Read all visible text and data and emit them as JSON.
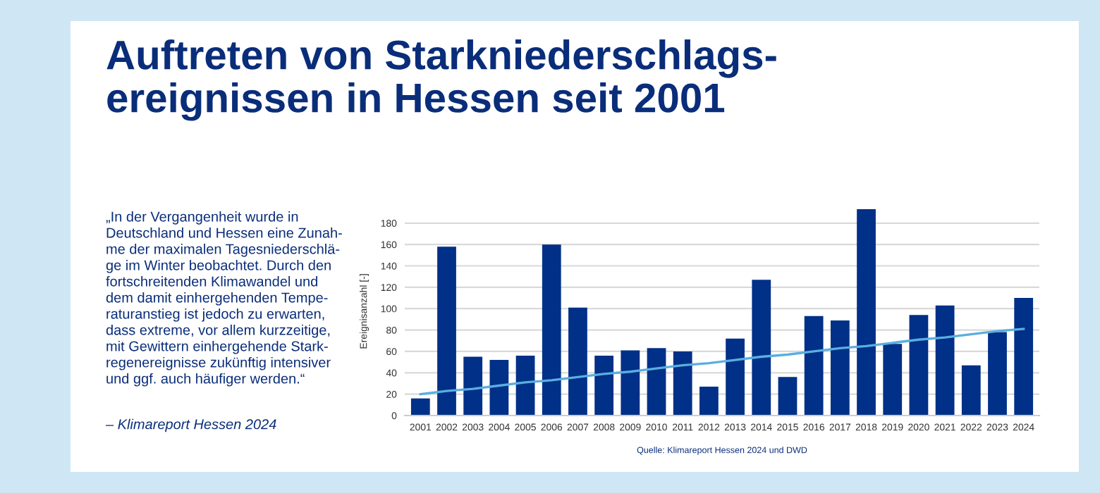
{
  "chart_data": {
    "type": "bar",
    "title": "Auftreten von Starkniederschlags-\nereignissen in Hessen seit 2001",
    "ylabel": "Ereignisanzahl [-]",
    "categories": [
      "2001",
      "2002",
      "2003",
      "2004",
      "2005",
      "2006",
      "2007",
      "2008",
      "2009",
      "2010",
      "2011",
      "2012",
      "2013",
      "2014",
      "2015",
      "2016",
      "2017",
      "2018",
      "2019",
      "2020",
      "2021",
      "2022",
      "2023",
      "2024"
    ],
    "series": [
      {
        "color": "#003087",
        "values": [
          16,
          158,
          55,
          52,
          56,
          160,
          101,
          56,
          61,
          63,
          60,
          27,
          72,
          127,
          36,
          93,
          89,
          193,
          67,
          94,
          103,
          47,
          78,
          110
        ]
      },
      {
        "type": "line",
        "color": "#5aaee0",
        "values": [
          20,
          23,
          25,
          28,
          31,
          33,
          36,
          39,
          41,
          44,
          47,
          49,
          52,
          55,
          57,
          60,
          63,
          65,
          68,
          71,
          73,
          76,
          79,
          81
        ]
      }
    ],
    "ylim": [
      0,
      195
    ],
    "yticks": [
      0,
      20,
      40,
      60,
      80,
      100,
      120,
      140,
      160,
      180
    ],
    "grid": "y",
    "legend": false,
    "annotations": [
      "„In der Vergangenheit wurde in\nDeutschland und Hessen eine Zunah-\nme der maximalen Tagesniederschlä-\nge im Winter beobachtet. Durch den\nfortschreitenden Klimawandel und\ndem damit einhergehenden Tempe-\nraturanstieg ist jedoch zu erwarten,\ndass extreme, vor allem kurzzeitige,\nmit Gewittern einhergehende Stark-\nregenereignisse zukünftig intensiver\nund ggf. auch häufiger werden.“",
      "– Klimareport Hessen 2024",
      "Quelle: Klimareport Hessen 2024 und DWD"
    ]
  }
}
